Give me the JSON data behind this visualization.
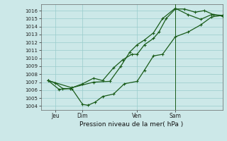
{
  "background_color": "#cce8e8",
  "grid_color": "#99cccc",
  "line_color": "#1a5c1a",
  "xlabel": "Pression niveau de la mer( hPa )",
  "ylim": [
    1003.5,
    1016.8
  ],
  "yticks": [
    1004,
    1005,
    1006,
    1007,
    1008,
    1009,
    1010,
    1011,
    1012,
    1013,
    1014,
    1015,
    1016
  ],
  "xtick_labels": [
    "Jeu",
    "Dim",
    "Ven",
    "Sam"
  ],
  "xtick_positions": [
    0.08,
    0.23,
    0.53,
    0.74
  ],
  "vline_x": 0.74,
  "series1_x": [
    0.04,
    0.08,
    0.12,
    0.16,
    0.23,
    0.29,
    0.34,
    0.4,
    0.45,
    0.5,
    0.53,
    0.57,
    0.62,
    0.65,
    0.69,
    0.74,
    0.79,
    0.85,
    0.9,
    0.95,
    1.0
  ],
  "series1_y": [
    1007.2,
    1006.9,
    1006.2,
    1006.2,
    1006.8,
    1007.5,
    1007.2,
    1008.8,
    1009.8,
    1010.5,
    1010.5,
    1011.7,
    1012.5,
    1013.3,
    1015.0,
    1016.2,
    1016.2,
    1015.8,
    1016.0,
    1015.5,
    1015.3
  ],
  "series2_x": [
    0.04,
    0.1,
    0.17,
    0.23,
    0.26,
    0.3,
    0.34,
    0.4,
    0.46,
    0.53,
    0.57,
    0.62,
    0.67,
    0.74,
    0.81,
    0.88,
    0.94,
    1.0
  ],
  "series2_y": [
    1007.2,
    1006.1,
    1006.2,
    1004.2,
    1004.1,
    1004.5,
    1005.2,
    1005.5,
    1006.8,
    1007.1,
    1008.5,
    1010.3,
    1010.5,
    1012.7,
    1013.3,
    1014.2,
    1015.2,
    1015.4
  ],
  "series3_x": [
    0.04,
    0.17,
    0.29,
    0.38,
    0.44,
    0.49,
    0.53,
    0.57,
    0.62,
    0.67,
    0.74,
    0.81,
    0.88,
    0.94,
    1.0
  ],
  "series3_y": [
    1007.2,
    1006.3,
    1007.0,
    1007.1,
    1009.0,
    1010.8,
    1011.7,
    1012.3,
    1013.2,
    1015.0,
    1016.3,
    1015.5,
    1014.9,
    1015.5,
    1015.4
  ]
}
